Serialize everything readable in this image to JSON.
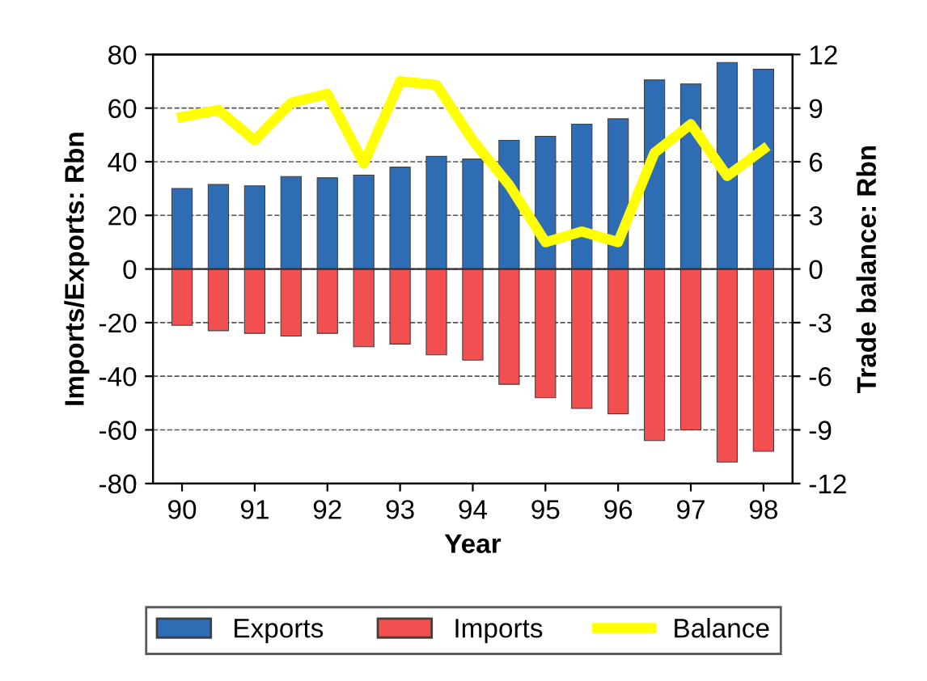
{
  "chart_data": {
    "type": "bar",
    "xlabel": "Year",
    "ylabel": "Imports/Exports: Rbn",
    "y2label": "Trade balance: Rbn",
    "x": [
      90,
      90.5,
      91,
      91.5,
      92,
      92.5,
      93,
      93.5,
      94,
      94.5,
      95,
      95.5,
      96,
      96.5,
      97,
      97.5,
      98
    ],
    "series": [
      {
        "name": "Exports",
        "color": "#2e6db4",
        "values": [
          30,
          31.5,
          31,
          34.5,
          34,
          35,
          38,
          42,
          41,
          48,
          49.5,
          54,
          56,
          70.5,
          69,
          77,
          74.5
        ]
      },
      {
        "name": "Imports",
        "color": "#f25050",
        "values": [
          -21,
          -23,
          -24,
          -25,
          -24,
          -29,
          -28,
          -32,
          -34,
          -43,
          -48,
          -52,
          -54,
          -64,
          -60,
          -72,
          -68
        ]
      },
      {
        "name": "Balance",
        "type": "line",
        "axis": "y2",
        "color": "#ffff00",
        "values": [
          8.5,
          8.9,
          7.2,
          9.3,
          9.8,
          5.9,
          10.5,
          10.3,
          7.2,
          4.7,
          1.5,
          2.1,
          1.5,
          6.5,
          8.1,
          5.2,
          6.7
        ]
      }
    ],
    "xlim": [
      89.6,
      98.4
    ],
    "xticks": [
      90,
      91,
      92,
      93,
      94,
      95,
      96,
      97,
      98
    ],
    "ylim": [
      -80,
      80
    ],
    "yticks": [
      -80,
      -60,
      -40,
      -20,
      0,
      20,
      40,
      60,
      80
    ],
    "y2lim": [
      -12,
      12
    ],
    "y2ticks": [
      -12,
      -9,
      -6,
      -3,
      0,
      3,
      6,
      9,
      12
    ],
    "stacked": true,
    "grid": "y",
    "legend": "bottom",
    "line_style": "solid",
    "marker": "none"
  }
}
